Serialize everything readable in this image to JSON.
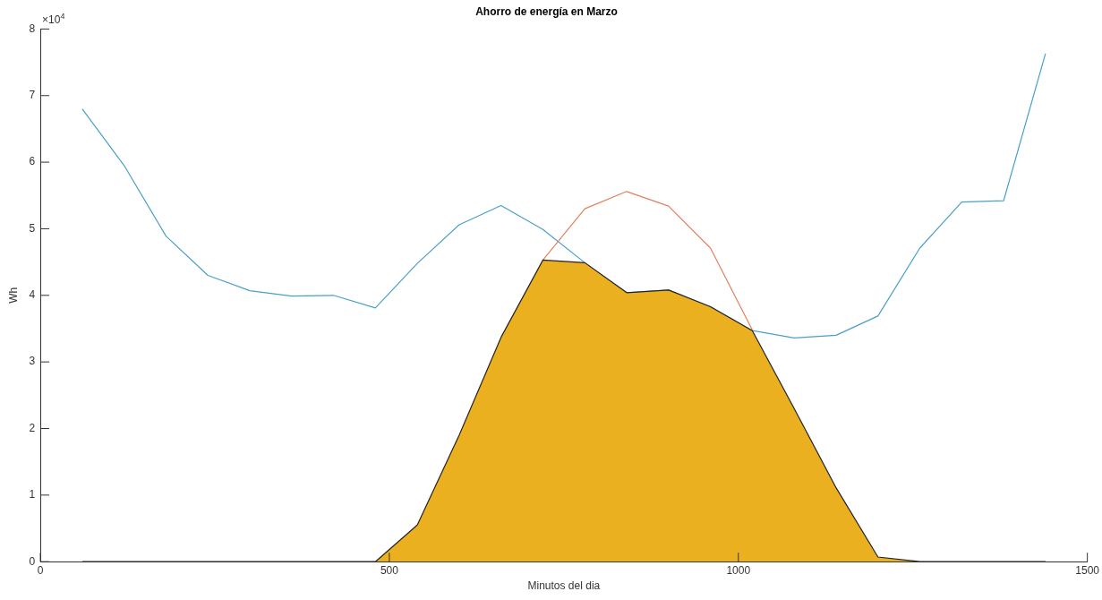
{
  "chart_data": {
    "type": "line",
    "title": "Ahorro de energía en Marzo",
    "xlabel": "Minutos del dia",
    "ylabel": "Wh",
    "x": [
      60,
      120,
      180,
      240,
      300,
      360,
      420,
      480,
      540,
      600,
      660,
      720,
      780,
      840,
      900,
      960,
      1020,
      1080,
      1140,
      1200,
      1260,
      1320,
      1380,
      1440
    ],
    "xlim": [
      0,
      1500
    ],
    "xticks": [
      0,
      500,
      1000,
      1500
    ],
    "ylim": [
      0,
      8
    ],
    "yticks": [
      0,
      1,
      2,
      3,
      4,
      5,
      6,
      7,
      8
    ],
    "annotations": [
      "×10$^{4}$"
    ],
    "grid": false,
    "legend": false,
    "marker": "none",
    "line_style": "solid",
    "series": [
      {
        "type": "line",
        "color": "#4a9fc8",
        "values": [
          6.8,
          5.95,
          4.89,
          4.3,
          4.07,
          3.99,
          4.0,
          3.81,
          4.48,
          5.06,
          5.35,
          4.99,
          4.49,
          4.04,
          4.08,
          3.83,
          3.47,
          3.36,
          3.4,
          3.69,
          4.71,
          5.4,
          5.42,
          7.63
        ]
      },
      {
        "type": "line",
        "color": "#e3805f",
        "values": [
          null,
          null,
          null,
          null,
          null,
          null,
          null,
          null,
          null,
          null,
          null,
          4.53,
          5.3,
          5.56,
          5.34,
          4.71,
          3.48,
          null,
          null,
          null,
          null,
          null,
          null,
          null
        ]
      },
      {
        "type": "area",
        "color": "#ebb020",
        "values": [
          0,
          0,
          0,
          0,
          0,
          0,
          0,
          0,
          0.55,
          1.9,
          3.37,
          4.53,
          4.49,
          4.04,
          4.08,
          3.83,
          3.47,
          2.3,
          1.11,
          0.07,
          0,
          0,
          0,
          0
        ]
      }
    ]
  }
}
